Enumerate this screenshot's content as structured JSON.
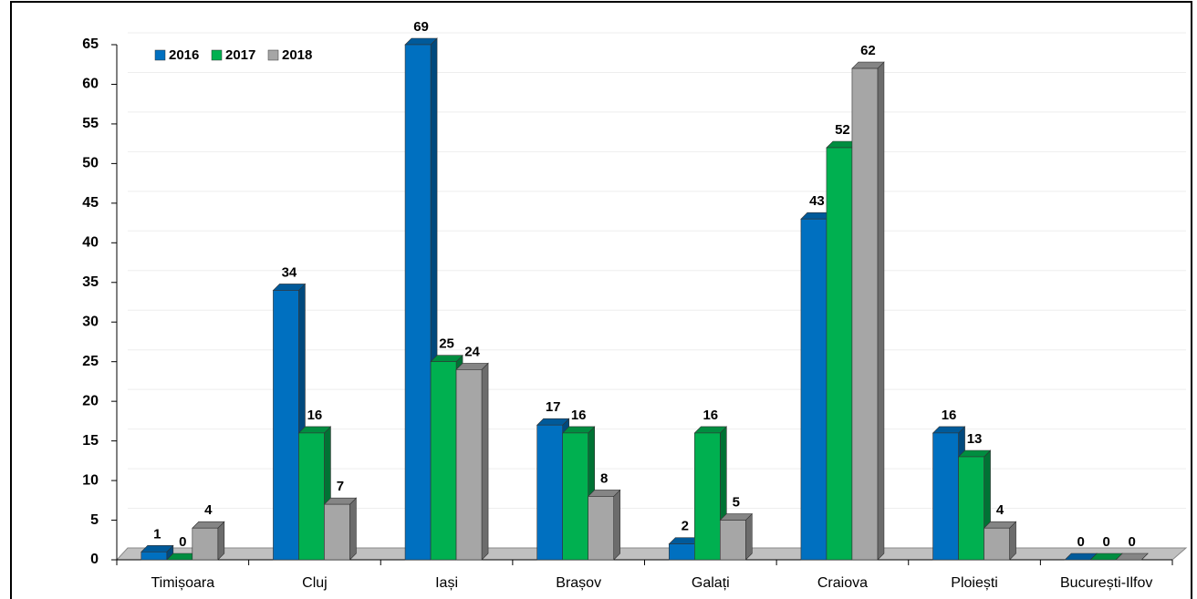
{
  "chart_data": {
    "type": "bar3d",
    "categories": [
      "Timișoara",
      "Cluj",
      "Iași",
      "Brașov",
      "Galați",
      "Craiova",
      "Ploiești",
      "București-Ilfov"
    ],
    "series": [
      {
        "name": "2016",
        "color": "#0070c0",
        "values": [
          1,
          34,
          69,
          17,
          2,
          43,
          16,
          0
        ]
      },
      {
        "name": "2017",
        "color": "#00b050",
        "values": [
          0,
          16,
          25,
          16,
          16,
          52,
          13,
          0
        ]
      },
      {
        "name": "2018",
        "color": "#a6a6a6",
        "values": [
          4,
          7,
          24,
          8,
          5,
          62,
          4,
          0
        ]
      }
    ],
    "ylim": [
      0,
      65
    ],
    "yticks": [
      0,
      5,
      10,
      15,
      20,
      25,
      30,
      35,
      40,
      45,
      50,
      55,
      60,
      65
    ],
    "grid": true,
    "legend": "top-left"
  }
}
